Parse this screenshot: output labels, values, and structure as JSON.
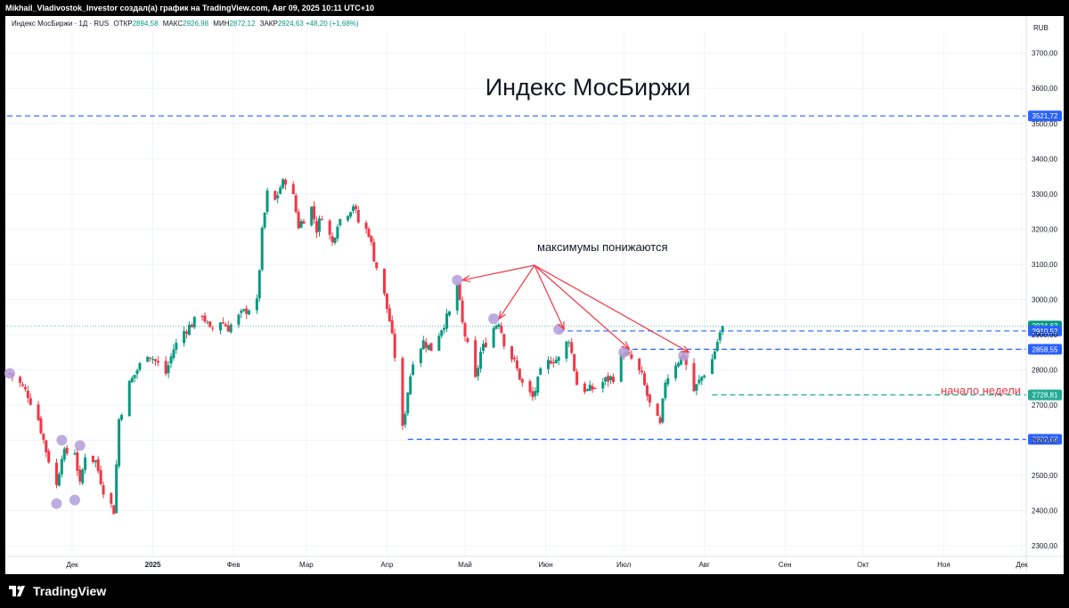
{
  "header": {
    "caption": "Mikhail_Vladivostok_Investor создал(а) график на TradingView.com, Авг 09, 2025 10:11 UTC+10"
  },
  "legend": {
    "instrument": "Индекс МосБиржи · 1Д · RUS",
    "open_label": "ОТКР",
    "open": "2894,58",
    "high_label": "МАКС",
    "high": "2926,98",
    "low_label": "МИН",
    "low": "2872,12",
    "close_label": "ЗАКР",
    "close": "2924,63",
    "change": "+48,20 (+1,68%)"
  },
  "currency": "RUB",
  "brand": {
    "name": "TradingView"
  },
  "colors": {
    "up": "#089981",
    "down": "#f23645",
    "blue_level": "#2962ff",
    "green_level": "#22ab94",
    "arrow": "#f23645",
    "marker": "#b39ddb"
  },
  "chart_data": {
    "type": "candlestick",
    "title": "Индекс МосБиржи",
    "ylim": [
      2270,
      3760
    ],
    "y_ticks": [
      2300,
      2400,
      2500,
      2600,
      2700,
      2800,
      2900,
      3000,
      3100,
      3200,
      3300,
      3400,
      3500,
      3600,
      3700
    ],
    "y_tick_labels": [
      "2300,00",
      "2400,00",
      "2500,00",
      "2600,00",
      "2700,00",
      "2800,00",
      "2900,00",
      "3000,00",
      "3100,00",
      "3200,00",
      "3300,00",
      "3400,00",
      "3500,00",
      "3600,00",
      "3700,00"
    ],
    "x_labels": [
      {
        "label": "Дек",
        "date": "2024-12-01"
      },
      {
        "label": "2025",
        "date": "2025-01-01"
      },
      {
        "label": "Фев",
        "date": "2025-02-01"
      },
      {
        "label": "Мар",
        "date": "2025-03-01"
      },
      {
        "label": "Апр",
        "date": "2025-04-01"
      },
      {
        "label": "Май",
        "date": "2025-05-01"
      },
      {
        "label": "Июн",
        "date": "2025-06-01"
      },
      {
        "label": "Июл",
        "date": "2025-07-01"
      },
      {
        "label": "Авг",
        "date": "2025-08-01"
      },
      {
        "label": "Сен",
        "date": "2025-09-01"
      },
      {
        "label": "Окт",
        "date": "2025-10-01"
      },
      {
        "label": "Ноя",
        "date": "2025-11-01"
      },
      {
        "label": "Дек",
        "date": "2025-12-01"
      }
    ],
    "closes": [
      {
        "date": "2024-11-07",
        "close": 2790
      },
      {
        "date": "2024-11-11",
        "close": 2760
      },
      {
        "date": "2024-11-14",
        "close": 2730
      },
      {
        "date": "2024-11-18",
        "close": 2660
      },
      {
        "date": "2024-11-21",
        "close": 2570
      },
      {
        "date": "2024-11-25",
        "close": 2470
      },
      {
        "date": "2024-11-27",
        "close": 2560
      },
      {
        "date": "2024-12-02",
        "close": 2570
      },
      {
        "date": "2024-12-04",
        "close": 2470
      },
      {
        "date": "2024-12-06",
        "close": 2560
      },
      {
        "date": "2024-12-10",
        "close": 2540
      },
      {
        "date": "2024-12-13",
        "close": 2460
      },
      {
        "date": "2024-12-17",
        "close": 2400
      },
      {
        "date": "2024-12-19",
        "close": 2660
      },
      {
        "date": "2024-12-23",
        "close": 2760
      },
      {
        "date": "2024-12-26",
        "close": 2800
      },
      {
        "date": "2024-12-30",
        "close": 2850
      },
      {
        "date": "2025-01-06",
        "close": 2790
      },
      {
        "date": "2025-01-09",
        "close": 2860
      },
      {
        "date": "2025-01-13",
        "close": 2910
      },
      {
        "date": "2025-01-16",
        "close": 2930
      },
      {
        "date": "2025-01-20",
        "close": 2960
      },
      {
        "date": "2025-01-23",
        "close": 2910
      },
      {
        "date": "2025-01-27",
        "close": 2940
      },
      {
        "date": "2025-01-30",
        "close": 2920
      },
      {
        "date": "2025-02-03",
        "close": 2950
      },
      {
        "date": "2025-02-06",
        "close": 2970
      },
      {
        "date": "2025-02-10",
        "close": 2990
      },
      {
        "date": "2025-02-12",
        "close": 3190
      },
      {
        "date": "2025-02-14",
        "close": 3300
      },
      {
        "date": "2025-02-17",
        "close": 3280
      },
      {
        "date": "2025-02-19",
        "close": 3320
      },
      {
        "date": "2025-02-21",
        "close": 3340
      },
      {
        "date": "2025-02-24",
        "close": 3290
      },
      {
        "date": "2025-02-26",
        "close": 3210
      },
      {
        "date": "2025-03-03",
        "close": 3260
      },
      {
        "date": "2025-03-05",
        "close": 3200
      },
      {
        "date": "2025-03-07",
        "close": 3240
      },
      {
        "date": "2025-03-11",
        "close": 3160
      },
      {
        "date": "2025-03-13",
        "close": 3220
      },
      {
        "date": "2025-03-17",
        "close": 3250
      },
      {
        "date": "2025-03-19",
        "close": 3270
      },
      {
        "date": "2025-03-21",
        "close": 3220
      },
      {
        "date": "2025-03-25",
        "close": 3190
      },
      {
        "date": "2025-03-27",
        "close": 3120
      },
      {
        "date": "2025-03-31",
        "close": 3010
      },
      {
        "date": "2025-04-02",
        "close": 2940
      },
      {
        "date": "2025-04-04",
        "close": 2840
      },
      {
        "date": "2025-04-07",
        "close": 2630
      },
      {
        "date": "2025-04-09",
        "close": 2740
      },
      {
        "date": "2025-04-11",
        "close": 2830
      },
      {
        "date": "2025-04-15",
        "close": 2880
      },
      {
        "date": "2025-04-18",
        "close": 2860
      },
      {
        "date": "2025-04-22",
        "close": 2920
      },
      {
        "date": "2025-04-25",
        "close": 2960
      },
      {
        "date": "2025-04-28",
        "close": 3040
      },
      {
        "date": "2025-04-30",
        "close": 2930
      },
      {
        "date": "2025-05-05",
        "close": 2770
      },
      {
        "date": "2025-05-07",
        "close": 2850
      },
      {
        "date": "2025-05-12",
        "close": 2920
      },
      {
        "date": "2025-05-14",
        "close": 2940
      },
      {
        "date": "2025-05-16",
        "close": 2880
      },
      {
        "date": "2025-05-20",
        "close": 2820
      },
      {
        "date": "2025-05-23",
        "close": 2760
      },
      {
        "date": "2025-05-27",
        "close": 2720
      },
      {
        "date": "2025-05-30",
        "close": 2790
      },
      {
        "date": "2025-06-03",
        "close": 2830
      },
      {
        "date": "2025-06-06",
        "close": 2830
      },
      {
        "date": "2025-06-10",
        "close": 2890
      },
      {
        "date": "2025-06-13",
        "close": 2760
      },
      {
        "date": "2025-06-17",
        "close": 2740
      },
      {
        "date": "2025-06-20",
        "close": 2750
      },
      {
        "date": "2025-06-24",
        "close": 2770
      },
      {
        "date": "2025-06-27",
        "close": 2780
      },
      {
        "date": "2025-07-01",
        "close": 2850
      },
      {
        "date": "2025-07-04",
        "close": 2830
      },
      {
        "date": "2025-07-08",
        "close": 2780
      },
      {
        "date": "2025-07-11",
        "close": 2700
      },
      {
        "date": "2025-07-15",
        "close": 2640
      },
      {
        "date": "2025-07-17",
        "close": 2770
      },
      {
        "date": "2025-07-21",
        "close": 2820
      },
      {
        "date": "2025-07-24",
        "close": 2840
      },
      {
        "date": "2025-07-28",
        "close": 2740
      },
      {
        "date": "2025-07-31",
        "close": 2780
      },
      {
        "date": "2025-08-04",
        "close": 2830
      },
      {
        "date": "2025-08-06",
        "close": 2880
      },
      {
        "date": "2025-08-08",
        "close": 2924.63
      }
    ],
    "levels": [
      {
        "value": 3521.72,
        "label": "3521,72",
        "color": "#2962ff"
      },
      {
        "value": 2924.63,
        "label": "2924,63",
        "color": "#089981"
      },
      {
        "value": 2910.52,
        "label": "2910,52",
        "color": "#2962ff"
      },
      {
        "value": 2858.55,
        "label": "2858,55",
        "color": "#2962ff"
      },
      {
        "value": 2728.81,
        "label": "2728,81",
        "color": "#22ab94"
      },
      {
        "value": 2602.68,
        "label": "2602,68",
        "color": "#2962ff"
      }
    ],
    "annotations": {
      "title_text": "Индекс МосБиржи",
      "lower_highs_text": "максимумы понижаются",
      "week_start_text": "начало недели"
    },
    "markers": [
      {
        "date": "2024-11-07",
        "value": 2790
      },
      {
        "date": "2024-11-25",
        "value": 2420
      },
      {
        "date": "2024-11-27",
        "value": 2600
      },
      {
        "date": "2024-12-02",
        "value": 2430
      },
      {
        "date": "2024-12-04",
        "value": 2585
      },
      {
        "date": "2025-04-28",
        "value": 3055
      },
      {
        "date": "2025-05-12",
        "value": 2945
      },
      {
        "date": "2025-06-06",
        "value": 2915
      },
      {
        "date": "2025-07-01",
        "value": 2850
      },
      {
        "date": "2025-07-24",
        "value": 2840
      }
    ],
    "arrow_targets": [
      {
        "date": "2025-04-28",
        "value": 3055
      },
      {
        "date": "2025-05-12",
        "value": 2945
      },
      {
        "date": "2025-06-06",
        "value": 2915
      },
      {
        "date": "2025-07-01",
        "value": 2860
      },
      {
        "date": "2025-07-24",
        "value": 2850
      }
    ]
  }
}
